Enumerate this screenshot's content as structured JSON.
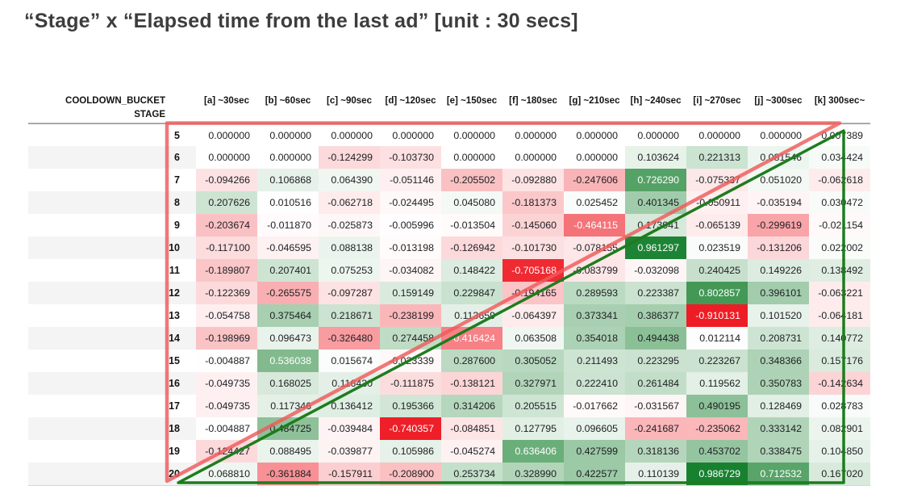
{
  "title": "“Stage” x “Elapsed time from the last ad” [unit : 30 secs]",
  "chart_data": {
    "type": "heatmap",
    "title": "“Stage” x “Elapsed time from the last ad” [unit : 30 secs]",
    "col_index_name": "COOLDOWN_BUCKET",
    "row_index_name": "STAGE",
    "columns": [
      "[a] ~30sec",
      "[b] ~60sec",
      "[c] ~90sec",
      "[d] ~120sec",
      "[e] ~150sec",
      "[f] ~180sec",
      "[g] ~210sec",
      "[h] ~240sec",
      "[i] ~270sec",
      "[j] ~300sec",
      "[k] 300sec~"
    ],
    "rows": [
      {
        "stage": "5",
        "values": [
          "0.000000",
          "0.000000",
          "0.000000",
          "0.000000",
          "0.000000",
          "0.000000",
          "0.000000",
          "0.000000",
          "0.000000",
          "0.000000",
          "0.007389"
        ]
      },
      {
        "stage": "6",
        "values": [
          "0.000000",
          "0.000000",
          "-0.124299",
          "-0.103730",
          "0.000000",
          "0.000000",
          "0.000000",
          "0.103624",
          "0.221313",
          "0.081546",
          "0.034424"
        ]
      },
      {
        "stage": "7",
        "values": [
          "-0.094266",
          "0.106868",
          "0.064390",
          "-0.051146",
          "-0.205502",
          "-0.092880",
          "-0.247606",
          "0.726290",
          "-0.075337",
          "0.051020",
          "-0.062618"
        ]
      },
      {
        "stage": "8",
        "values": [
          "0.207626",
          "0.010516",
          "-0.062718",
          "-0.024495",
          "0.045080",
          "-0.181373",
          "0.025452",
          "0.401345",
          "-0.050911",
          "-0.035194",
          "0.030472"
        ]
      },
      {
        "stage": "9",
        "values": [
          "-0.203674",
          "-0.011870",
          "-0.025873",
          "-0.005996",
          "-0.013504",
          "-0.145060",
          "-0.464115",
          "0.173941",
          "-0.065139",
          "-0.299619",
          "-0.021154"
        ]
      },
      {
        "stage": "10",
        "values": [
          "-0.117100",
          "-0.046595",
          "0.088138",
          "-0.013198",
          "-0.126942",
          "-0.101730",
          "-0.078155",
          "0.961297",
          "0.023519",
          "-0.131206",
          "0.022002"
        ]
      },
      {
        "stage": "11",
        "values": [
          "-0.189807",
          "0.207401",
          "0.075253",
          "-0.034082",
          "0.148422",
          "-0.705168",
          "-0.083799",
          "-0.032098",
          "0.240425",
          "0.149226",
          "0.138492"
        ]
      },
      {
        "stage": "12",
        "values": [
          "-0.122369",
          "-0.265575",
          "-0.097287",
          "0.159149",
          "0.229847",
          "-0.194165",
          "0.289593",
          "0.223387",
          "0.802857",
          "0.396101",
          "-0.063221"
        ]
      },
      {
        "stage": "13",
        "values": [
          "-0.054758",
          "0.375464",
          "0.218671",
          "-0.238199",
          "0.113659",
          "-0.064397",
          "0.373341",
          "0.386377",
          "-0.910131",
          "0.101520",
          "-0.064181"
        ]
      },
      {
        "stage": "14",
        "values": [
          "-0.198969",
          "0.096473",
          "-0.326480",
          "0.274458",
          "-0.416424",
          "0.063508",
          "0.354018",
          "0.494438",
          "0.012114",
          "0.208731",
          "0.140772"
        ]
      },
      {
        "stage": "15",
        "values": [
          "-0.004887",
          "0.536038",
          "0.015674",
          "-0.023339",
          "0.287600",
          "0.305052",
          "0.211493",
          "0.223295",
          "0.223267",
          "0.348366",
          "0.157176"
        ]
      },
      {
        "stage": "16",
        "values": [
          "-0.049735",
          "0.168025",
          "0.116430",
          "-0.111875",
          "-0.138121",
          "0.327971",
          "0.222410",
          "0.261484",
          "0.119562",
          "0.350783",
          "-0.142634"
        ]
      },
      {
        "stage": "17",
        "values": [
          "-0.049735",
          "0.117346",
          "0.136412",
          "0.195366",
          "0.314206",
          "0.205515",
          "-0.017662",
          "-0.031567",
          "0.490195",
          "0.128469",
          "0.028783"
        ]
      },
      {
        "stage": "18",
        "values": [
          "-0.004887",
          "0.484725",
          "-0.039484",
          "-0.740357",
          "-0.084851",
          "0.127795",
          "0.096605",
          "-0.241687",
          "-0.235062",
          "0.333142",
          "0.082901"
        ]
      },
      {
        "stage": "19",
        "values": [
          "-0.124427",
          "0.088495",
          "-0.039877",
          "0.105986",
          "-0.045274",
          "0.636406",
          "0.427599",
          "0.318136",
          "0.453702",
          "0.338475",
          "0.104850"
        ]
      },
      {
        "stage": "20",
        "values": [
          "0.068810",
          "-0.361884",
          "-0.157911",
          "-0.208900",
          "0.253734",
          "0.328990",
          "0.422577",
          "0.110139",
          "0.986729",
          "0.712532",
          "0.167020"
        ]
      }
    ],
    "color_scale": {
      "neutral_color": "#ffffff",
      "positive_color": "#157f2d",
      "negative_color": "#ee1c25"
    },
    "annotations": {
      "red_triangle": "upper-left triangle outline over table",
      "green_triangle": "lower-right triangle outline over table",
      "red_color": "#ee5a5a",
      "green_color": "#1e7c1e"
    }
  }
}
